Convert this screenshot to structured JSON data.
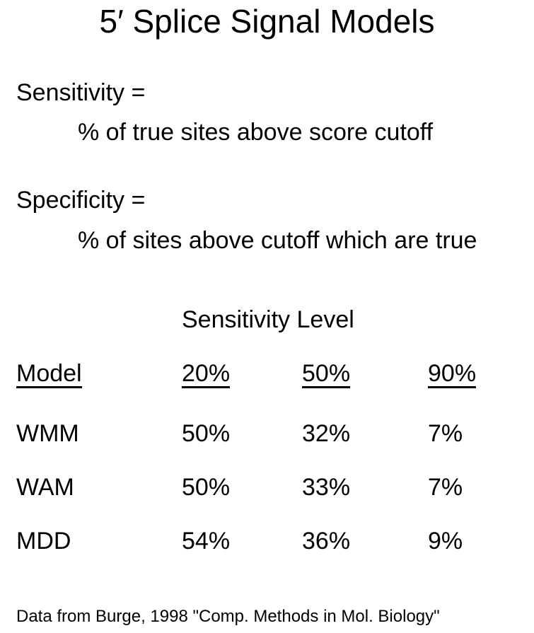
{
  "title": "5′ Splice Signal Models",
  "definitions": [
    {
      "term": "Sensitivity =",
      "text": "% of true sites above score cutoff"
    },
    {
      "term": "Specificity =",
      "text": "% of sites above cutoff which are true"
    }
  ],
  "table": {
    "caption": "Sensitivity Level",
    "headers": [
      "Model",
      "20%",
      "50%",
      "90%"
    ],
    "rows": [
      [
        "WMM",
        "50%",
        "32%",
        "7%"
      ],
      [
        "WAM",
        "50%",
        "33%",
        "7%"
      ],
      [
        "MDD",
        "54%",
        "36%",
        "9%"
      ]
    ]
  },
  "footnote": "Data from Burge, 1998 \"Comp. Methods in Mol. Biology\""
}
